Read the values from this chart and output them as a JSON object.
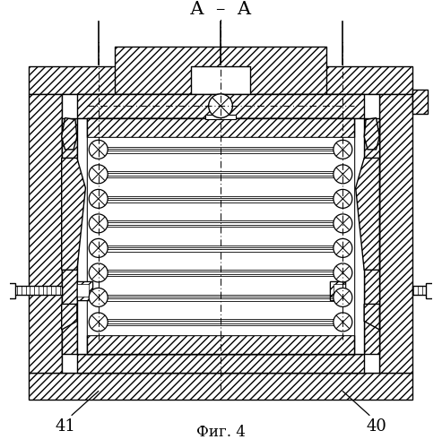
{
  "title": "Фиг. 4",
  "section_label": "А  –  А",
  "label_41": "41",
  "label_40": "40",
  "fig_width": 4.93,
  "fig_height": 5.0,
  "bg_color": "#ffffff",
  "line_color": "#000000"
}
